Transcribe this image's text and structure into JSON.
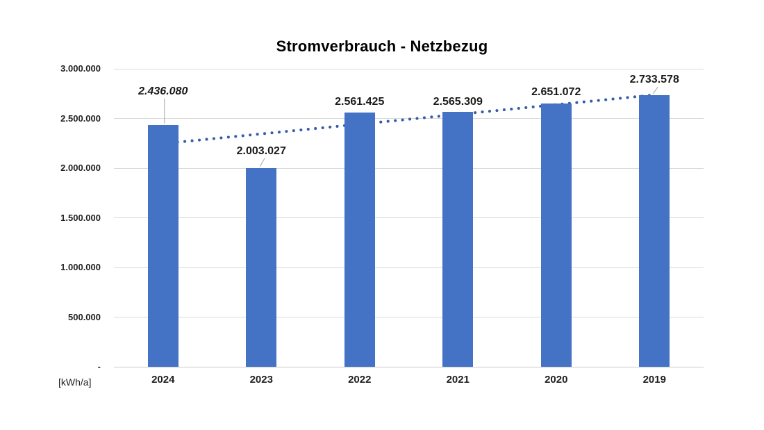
{
  "chart_data": {
    "type": "bar",
    "title": "Stromverbrauch - Netzbezug",
    "unit_label": "[kWh/a]",
    "categories": [
      "2024",
      "2023",
      "2022",
      "2021",
      "2020",
      "2019"
    ],
    "values": [
      2436080,
      2003027,
      2561425,
      2565309,
      2651072,
      2733578
    ],
    "data_labels": [
      {
        "text": "2.436.080",
        "italic": true,
        "offset": 48,
        "leader": "vertical"
      },
      {
        "text": "2.003.027",
        "italic": false,
        "offset": 24,
        "leader": "diagonal"
      },
      {
        "text": "2.561.425",
        "italic": false,
        "offset": 15,
        "leader": null
      },
      {
        "text": "2.565.309",
        "italic": false,
        "offset": 14,
        "leader": null
      },
      {
        "text": "2.651.072",
        "italic": false,
        "offset": 16,
        "leader": null
      },
      {
        "text": "2.733.578",
        "italic": false,
        "offset": 22,
        "leader": "diagonal"
      }
    ],
    "ylim": [
      0,
      3000000
    ],
    "ytick_interval": 500000,
    "ytick_labels_bottom_to_top": [
      "-",
      "500.000",
      "1.000.000",
      "1.500.000",
      "2.000.000",
      "2.500.000",
      "3.000.000"
    ],
    "xlabel": "",
    "ylabel": "",
    "grid": true,
    "legend": "none",
    "trendline": {
      "type": "linear",
      "dash": "dotted",
      "start_value": 2246355,
      "end_value": 2737142
    },
    "colors": {
      "bar": "#4472c4",
      "trendline": "#355ca6",
      "gridline": "#d9d9d9",
      "axis_line": "#cccccc",
      "leader_line": "#a6a6a6",
      "text": "#1a1a1a"
    }
  }
}
